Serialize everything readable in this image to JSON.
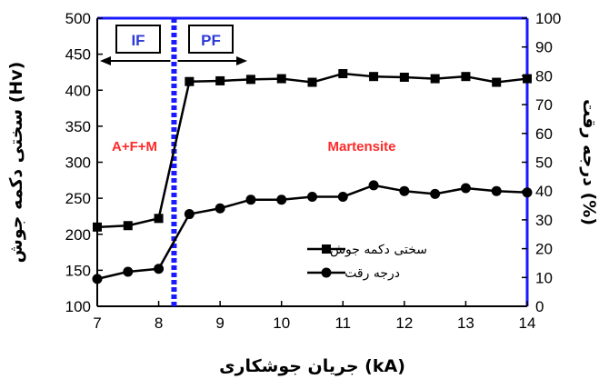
{
  "chart_data": {
    "type": "line",
    "x_axis": {
      "title": "جریان جوشکاری (kA)",
      "range": [
        7,
        14
      ],
      "ticks": [
        "7",
        "8",
        "9",
        "10",
        "11",
        "12",
        "13",
        "14"
      ]
    },
    "y_axis_left": {
      "title": "سختی دکمه جوش (Hv)",
      "range": [
        100,
        500
      ],
      "ticks": [
        "100",
        "150",
        "200",
        "250",
        "300",
        "350",
        "400",
        "450",
        "500"
      ]
    },
    "y_axis_right": {
      "title": "درجه رقت (%)",
      "range": [
        0,
        100
      ],
      "ticks": [
        "0",
        "10",
        "20",
        "30",
        "40",
        "50",
        "60",
        "70",
        "80",
        "90",
        "100"
      ]
    },
    "series": [
      {
        "name": "سختی دکمه جوش",
        "axis": "left",
        "marker": "square",
        "color": "#000000",
        "x": [
          7,
          7.5,
          8,
          8.5,
          9,
          9.5,
          10,
          10.5,
          11,
          11.5,
          12,
          12.5,
          13,
          13.5,
          14
        ],
        "values": [
          210,
          212,
          222,
          412,
          413,
          415,
          416,
          411,
          423,
          419,
          418,
          416,
          419,
          411,
          416
        ]
      },
      {
        "name": "درجه رقت",
        "axis": "right",
        "marker": "circle",
        "color": "#000000",
        "x": [
          7,
          7.5,
          8,
          8.5,
          9,
          9.5,
          10,
          10.5,
          11,
          11.5,
          12,
          12.5,
          13,
          13.5,
          14
        ],
        "values": [
          9.5,
          12,
          13,
          32,
          34,
          37,
          37,
          38,
          38,
          42,
          40,
          39,
          41,
          40,
          39.5
        ]
      }
    ],
    "boundary": {
      "x": 8.25,
      "color": "#1a1aff"
    },
    "annotations": {
      "zone_left": "IF",
      "zone_right": "PF",
      "phase_left": "A+F+M",
      "phase_right": "Martensite"
    },
    "legend": {
      "placement": "lower-right",
      "entries": [
        "سختی دکمه جوش",
        "درجه رقت"
      ]
    },
    "grid": false
  }
}
